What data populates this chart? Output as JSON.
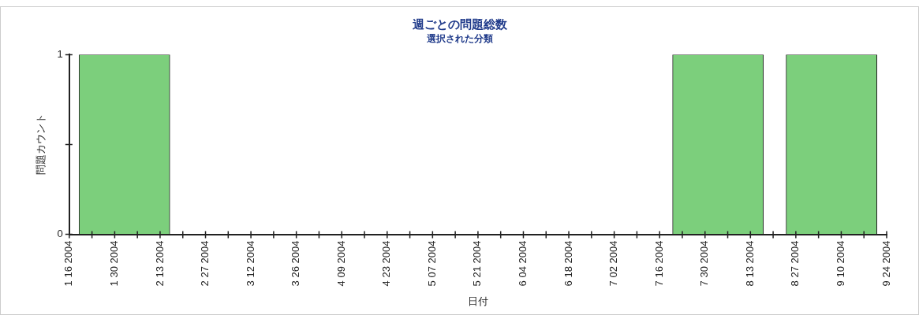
{
  "chart_data": {
    "type": "bar",
    "title": "週ごとの問題総数",
    "subtitle": "選択された分類",
    "xlabel": "日付",
    "ylabel": "問題カウント",
    "x": [
      "2004-02-02",
      "2004-08-03",
      "2004-09-07"
    ],
    "values": [
      1,
      1,
      1
    ],
    "color": "#7ccf7c",
    "xlim": [
      "2004-01-16",
      "2004-09-24"
    ],
    "xticks": [
      {
        "value": "2004-01-16",
        "label": "1 16 2004"
      },
      {
        "value": "2004-01-23",
        "label": null
      },
      {
        "value": "2004-01-30",
        "label": "1 30 2004"
      },
      {
        "value": "2004-02-06",
        "label": null
      },
      {
        "value": "2004-02-13",
        "label": "2 13 2004"
      },
      {
        "value": "2004-02-20",
        "label": null
      },
      {
        "value": "2004-02-27",
        "label": "2 27 2004"
      },
      {
        "value": "2004-03-05",
        "label": null
      },
      {
        "value": "2004-03-12",
        "label": "3 12 2004"
      },
      {
        "value": "2004-03-19",
        "label": null
      },
      {
        "value": "2004-03-26",
        "label": "3 26 2004"
      },
      {
        "value": "2004-04-02",
        "label": null
      },
      {
        "value": "2004-04-09",
        "label": "4 09 2004"
      },
      {
        "value": "2004-04-16",
        "label": null
      },
      {
        "value": "2004-04-23",
        "label": "4 23 2004"
      },
      {
        "value": "2004-04-30",
        "label": null
      },
      {
        "value": "2004-05-07",
        "label": "5 07 2004"
      },
      {
        "value": "2004-05-14",
        "label": null
      },
      {
        "value": "2004-05-21",
        "label": "5 21 2004"
      },
      {
        "value": "2004-05-28",
        "label": null
      },
      {
        "value": "2004-06-04",
        "label": "6 04 2004"
      },
      {
        "value": "2004-06-11",
        "label": null
      },
      {
        "value": "2004-06-18",
        "label": "6 18 2004"
      },
      {
        "value": "2004-06-25",
        "label": null
      },
      {
        "value": "2004-07-02",
        "label": "7 02 2004"
      },
      {
        "value": "2004-07-09",
        "label": null
      },
      {
        "value": "2004-07-16",
        "label": "7 16 2004"
      },
      {
        "value": "2004-07-23",
        "label": null
      },
      {
        "value": "2004-07-30",
        "label": "7 30 2004"
      },
      {
        "value": "2004-08-06",
        "label": null
      },
      {
        "value": "2004-08-13",
        "label": "8 13 2004"
      },
      {
        "value": "2004-08-20",
        "label": null
      },
      {
        "value": "2004-08-27",
        "label": "8 27 2004"
      },
      {
        "value": "2004-09-03",
        "label": null
      },
      {
        "value": "2004-09-10",
        "label": "9 10 2004"
      },
      {
        "value": "2004-09-17",
        "label": null
      },
      {
        "value": "2004-09-24",
        "label": "9 24 2004"
      }
    ],
    "ylim": [
      0,
      1
    ],
    "yticks": [
      0,
      {
        "value": 0.5,
        "label": null
      },
      1
    ]
  }
}
